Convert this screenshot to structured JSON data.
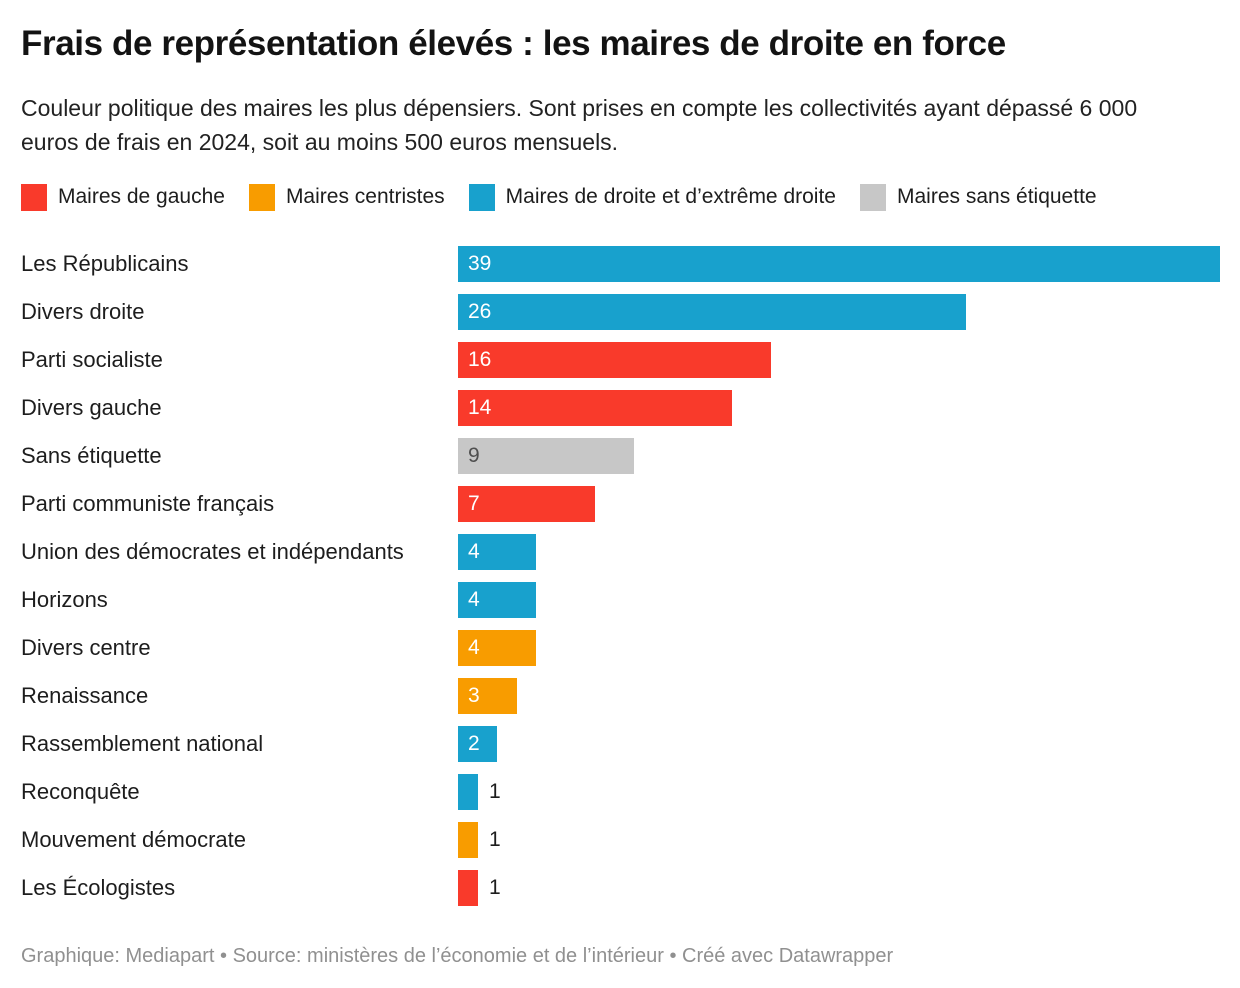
{
  "header": {
    "title": "Frais de représentation élevés : les maires de droite en force",
    "subtitle": "Couleur politique des maires les plus dépensiers. Sont prises en compte les collectivités ayant dépassé 6 000 euros de frais en 2024, soit au moins 500 euros mensuels."
  },
  "legend": {
    "items": [
      {
        "label": "Maires de gauche",
        "group": "gauche",
        "color": "#f93a2b"
      },
      {
        "label": "Maires centristes",
        "group": "centre",
        "color": "#f89c00"
      },
      {
        "label": "Maires de droite et d’extrême droite",
        "group": "droite",
        "color": "#18a1cd"
      },
      {
        "label": "Maires sans étiquette",
        "group": "sans",
        "color": "#c7c7c7"
      }
    ]
  },
  "chart_data": {
    "type": "bar",
    "orientation": "horizontal",
    "title": "Frais de représentation élevés : les maires de droite en force",
    "xlabel": "",
    "ylabel": "",
    "xlim": [
      0,
      39
    ],
    "grid": false,
    "legend_position": "top",
    "group_colors": {
      "gauche": "#f93a2b",
      "centre": "#f89c00",
      "droite": "#18a1cd",
      "sans": "#c7c7c7"
    },
    "categories": [
      "Les Républicains",
      "Divers droite",
      "Parti socialiste",
      "Divers gauche",
      "Sans étiquette",
      "Parti communiste français",
      "Union des démocrates et indépendants",
      "Horizons",
      "Divers centre",
      "Renaissance",
      "Rassemblement national",
      "Reconquête",
      "Mouvement démocrate",
      "Les Écologistes"
    ],
    "values": [
      39,
      26,
      16,
      14,
      9,
      7,
      4,
      4,
      4,
      3,
      2,
      1,
      1,
      1
    ],
    "bar_groups": [
      "droite",
      "droite",
      "gauche",
      "gauche",
      "sans",
      "gauche",
      "droite",
      "droite",
      "centre",
      "centre",
      "droite",
      "droite",
      "centre",
      "gauche"
    ]
  },
  "footer": {
    "credit": "Graphique: Mediapart • Source: ministères de l’économie et de l’intérieur • Créé avec Datawrapper"
  }
}
